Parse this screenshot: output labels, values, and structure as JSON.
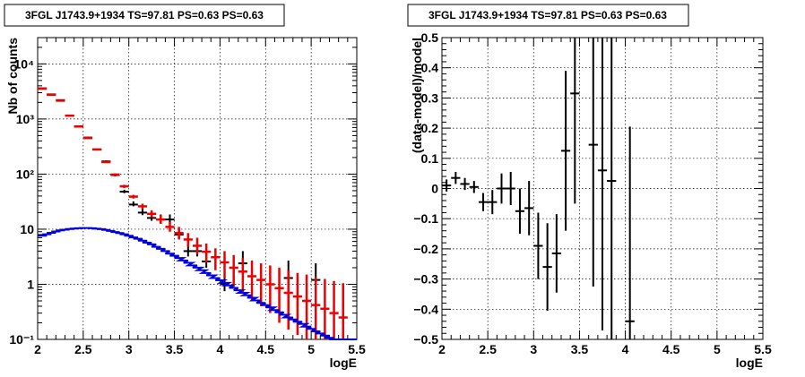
{
  "chart_data": [
    {
      "type": "scatter",
      "title": "3FGL J1743.9+1934 TS=97.81 PS=0.63 PS=0.63",
      "xlabel": "logE",
      "ylabel": "Nb of counts",
      "xlim": [
        2,
        5.5
      ],
      "ylim": [
        0.1,
        30000
      ],
      "yscale": "log",
      "grid": true,
      "x_ticks": [
        "2",
        "2.5",
        "3",
        "3.5",
        "4",
        "4.5",
        "5",
        "5.5"
      ],
      "y_ticks": [
        "10⁻¹",
        "1",
        "10",
        "10²",
        "10³",
        "10⁴"
      ],
      "y_tick_values": [
        0.1,
        1,
        10,
        100,
        1000,
        10000
      ],
      "colors": {
        "data": "#000000",
        "model_counts": "#ee0000",
        "model_curve": "#0000dd"
      },
      "series": [
        {
          "role": "data",
          "x": [
            2.05,
            2.15,
            2.25,
            2.35,
            2.45,
            2.55,
            2.65,
            2.75,
            2.85,
            2.95,
            3.05,
            3.15,
            3.25,
            3.35,
            3.45,
            3.55,
            3.65,
            3.75,
            3.85,
            4.05,
            4.25,
            4.75,
            5.05
          ],
          "y": [
            3600,
            2800,
            2200,
            1150,
            740,
            460,
            280,
            170,
            96,
            48,
            28,
            20,
            16,
            15,
            15,
            8,
            4,
            4,
            2.6,
            1,
            2.4,
            1.3,
            1.2
          ],
          "err_low": [
            3540,
            2750,
            2160,
            1120,
            720,
            445,
            270,
            163,
            91,
            45,
            26,
            18,
            14.2,
            13,
            13,
            6.8,
            3.2,
            3.2,
            2.0,
            0.75,
            1.9,
            1.1,
            1.0
          ],
          "err_high": [
            3660,
            2850,
            2240,
            1180,
            760,
            475,
            290,
            177,
            101,
            52,
            32,
            24,
            20,
            18.5,
            18.5,
            10,
            5.3,
            5.3,
            4.0,
            2.0,
            4.0,
            2.7,
            2.4
          ]
        },
        {
          "role": "model_counts",
          "x": [
            2.05,
            2.15,
            2.25,
            2.35,
            2.45,
            2.55,
            2.65,
            2.75,
            2.85,
            2.95,
            3.05,
            3.15,
            3.25,
            3.35,
            3.45,
            3.55,
            3.65,
            3.75,
            3.85,
            3.95,
            4.05,
            4.15,
            4.25,
            4.35,
            4.45,
            4.55,
            4.65,
            4.75,
            4.85,
            4.95,
            5.05,
            5.15,
            5.25,
            5.35
          ],
          "y": [
            3550,
            2750,
            2150,
            1150,
            730,
            450,
            280,
            165,
            98,
            60,
            39,
            26,
            19,
            15,
            11,
            8.5,
            6.5,
            5,
            3.9,
            3.1,
            2.5,
            2.0,
            1.7,
            1.4,
            1.2,
            1.0,
            0.85,
            0.7,
            0.6,
            0.5,
            0.42,
            0.36,
            0.3,
            0.25
          ],
          "err_low": [
            3490,
            2700,
            2110,
            1120,
            710,
            435,
            270,
            158,
            93,
            56,
            36,
            23,
            16.5,
            12.5,
            9,
            6.5,
            4.8,
            3.5,
            2.5,
            1.8,
            1.3,
            0.9,
            0.7,
            0.5,
            0.4,
            0.3,
            0.2,
            0.15,
            0.12,
            0.1,
            0.1,
            0.1,
            0.1,
            0.1
          ],
          "err_high": [
            3610,
            2800,
            2190,
            1180,
            750,
            465,
            290,
            172,
            103,
            64,
            42,
            29,
            22,
            18,
            13.5,
            11,
            8.5,
            7,
            5.5,
            4.5,
            4,
            3.4,
            3,
            2.7,
            2.4,
            2.2,
            2.0,
            1.8,
            1.6,
            1.5,
            1.35,
            1.25,
            1.15,
            1.05
          ]
        },
        {
          "role": "model_curve",
          "x": [
            2.0,
            2.05,
            2.1,
            2.15,
            2.2,
            2.25,
            2.3,
            2.35,
            2.4,
            2.45,
            2.5,
            2.55,
            2.6,
            2.65,
            2.7,
            2.75,
            2.8,
            2.85,
            2.9,
            2.95,
            3.0,
            3.05,
            3.1,
            3.15,
            3.2,
            3.25,
            3.3,
            3.35,
            3.4,
            3.45,
            3.5,
            3.55,
            3.6,
            3.65,
            3.7,
            3.75,
            3.8,
            3.85,
            3.9,
            3.95,
            4.0,
            4.05,
            4.1,
            4.15,
            4.2,
            4.25,
            4.3,
            4.35,
            4.4,
            4.45,
            4.5,
            4.55,
            4.6,
            4.65,
            4.7,
            4.75,
            4.8,
            4.85,
            4.9,
            4.95,
            5.0,
            5.05,
            5.1,
            5.15,
            5.2,
            5.25,
            5.3,
            5.35,
            5.4
          ],
          "y": [
            7.6,
            8.1,
            8.6,
            9.1,
            9.5,
            9.8,
            10.1,
            10.3,
            10.4,
            10.5,
            10.5,
            10.4,
            10.2,
            10.0,
            9.7,
            9.3,
            8.9,
            8.5,
            8.1,
            7.6,
            7.1,
            6.7,
            6.2,
            5.7,
            5.3,
            4.8,
            4.4,
            4.0,
            3.6,
            3.3,
            3.0,
            2.7,
            2.45,
            2.2,
            2.0,
            1.8,
            1.6,
            1.45,
            1.3,
            1.18,
            1.06,
            0.95,
            0.86,
            0.78,
            0.7,
            0.63,
            0.57,
            0.51,
            0.46,
            0.42,
            0.38,
            0.34,
            0.31,
            0.28,
            0.25,
            0.23,
            0.21,
            0.19,
            0.17,
            0.155,
            0.14,
            0.128,
            0.117,
            0.107,
            0.098,
            0.09,
            0.083,
            0.077,
            0.071
          ]
        }
      ]
    },
    {
      "type": "scatter",
      "title": "3FGL J1743.9+1934 TS=97.81 PS=0.63 PS=0.63",
      "xlabel": "logE",
      "ylabel": "(data-model)/model",
      "xlim": [
        2,
        5.5
      ],
      "ylim": [
        -0.5,
        0.5
      ],
      "grid": true,
      "x_ticks": [
        "2",
        "2.5",
        "3",
        "3.5",
        "4",
        "4.5",
        "5",
        "5.5"
      ],
      "y_ticks": [
        "−0.5",
        "−0.4",
        "−0.3",
        "−0.2",
        "−0.1",
        "0",
        "0.1",
        "0.2",
        "0.3",
        "0.4",
        "0.5"
      ],
      "y_tick_values": [
        -0.5,
        -0.4,
        -0.3,
        -0.2,
        -0.1,
        0,
        0.1,
        0.2,
        0.3,
        0.4,
        0.5
      ],
      "series": [
        {
          "role": "residuals",
          "x": [
            2.05,
            2.15,
            2.25,
            2.35,
            2.45,
            2.55,
            2.65,
            2.75,
            2.85,
            2.95,
            3.05,
            3.15,
            3.25,
            3.35,
            3.45,
            3.65,
            3.75,
            3.85,
            4.05
          ],
          "y": [
            0.01,
            0.035,
            0.015,
            0.005,
            -0.045,
            -0.045,
            0.0,
            0.0,
            -0.075,
            -0.065,
            -0.19,
            -0.26,
            -0.215,
            0.125,
            0.315,
            0.145,
            0.06,
            0.025,
            -0.44
          ],
          "err": [
            0.02,
            0.02,
            0.02,
            0.02,
            0.03,
            0.04,
            0.05,
            0.055,
            0.075,
            0.09,
            0.11,
            0.145,
            0.13,
            0.265,
            0.365,
            0.47,
            0.53,
            0.58,
            0.645
          ]
        }
      ]
    }
  ]
}
